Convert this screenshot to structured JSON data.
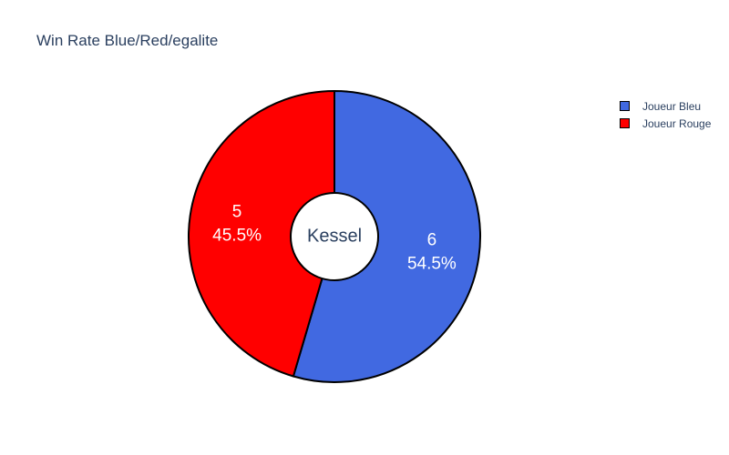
{
  "chart_data": {
    "type": "pie",
    "title": "Win Rate Blue/Red/egalite",
    "center_label": "Kessel",
    "hole": true,
    "legend_position": "top-right",
    "slices": [
      {
        "name": "Joueur Bleu",
        "value": 6,
        "percent_label": "54.5%",
        "color": "#4169e1"
      },
      {
        "name": "Joueur Rouge",
        "value": 5,
        "percent_label": "45.5%",
        "color": "#ff0000"
      }
    ],
    "border_color": "#000000",
    "text_color_inside": "#ffffff",
    "text_color_center": "#2a3f5f"
  }
}
